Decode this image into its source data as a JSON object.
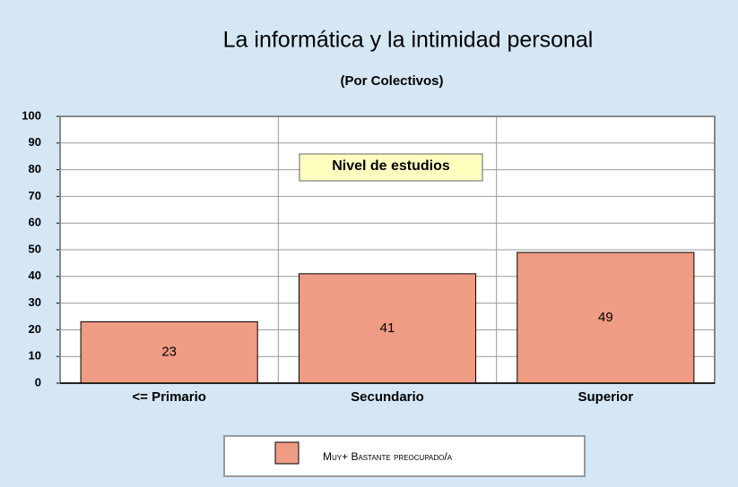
{
  "chart_data": {
    "type": "bar",
    "title": "La informática y la intimidad personal",
    "subtitle": "(Por Colectivos)",
    "annotation": "Nivel de estudios",
    "categories": [
      "<= Primario",
      "Secundario",
      "Superior"
    ],
    "series": [
      {
        "name": "Muy+ Bastante preocupado/a",
        "color": "#ee9c84",
        "values": [
          23,
          41,
          49
        ]
      }
    ],
    "ylim": [
      0,
      100
    ],
    "yticks": [
      0,
      10,
      20,
      30,
      40,
      50,
      60,
      70,
      80,
      90,
      100
    ],
    "grid": true,
    "legend": "bottom"
  }
}
